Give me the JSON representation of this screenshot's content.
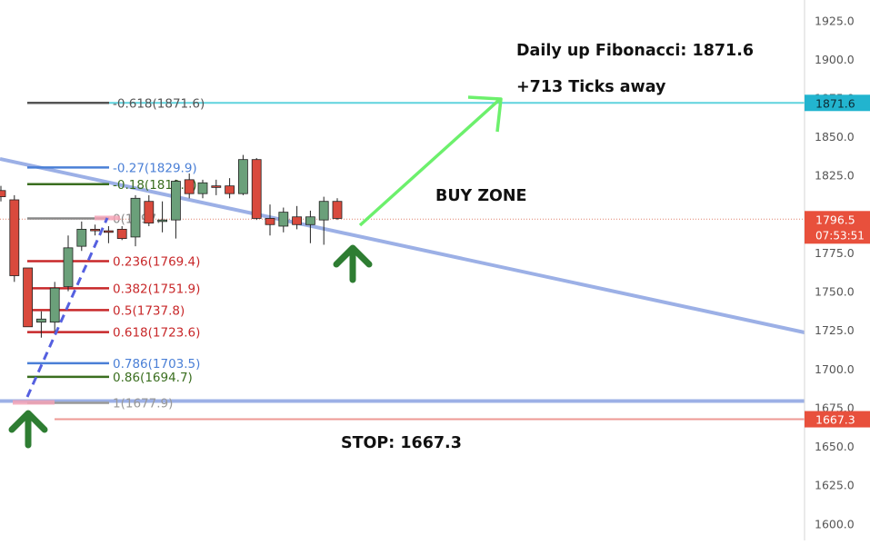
{
  "chart_data": {
    "type": "candlestick",
    "y_axis": {
      "position": "right",
      "ticks": [
        1600.0,
        1625.0,
        1650.0,
        1675.0,
        1700.0,
        1725.0,
        1750.0,
        1775.0,
        1825.0,
        1850.0,
        1875.0,
        1900.0,
        1925.0
      ],
      "tick_labels": [
        "1600.0",
        "1625.0",
        "1650.0",
        "1675.0",
        "1700.0",
        "1725.0",
        "1750.0",
        "1775.0",
        "1825.0",
        "1850.0",
        "1875.0",
        "1900.0",
        "1925.0"
      ],
      "range": [
        1590,
        1935
      ]
    },
    "candles": [
      {
        "o": 1815,
        "h": 1818,
        "l": 1808,
        "c": 1811
      },
      {
        "o": 1809,
        "h": 1812,
        "l": 1756,
        "c": 1760
      },
      {
        "o": 1765,
        "h": 1765,
        "l": 1727,
        "c": 1727
      },
      {
        "o": 1730,
        "h": 1737,
        "l": 1720,
        "c": 1732
      },
      {
        "o": 1730,
        "h": 1756,
        "l": 1724,
        "c": 1752
      },
      {
        "o": 1753,
        "h": 1786,
        "l": 1750,
        "c": 1778
      },
      {
        "o": 1779,
        "h": 1795,
        "l": 1776,
        "c": 1790
      },
      {
        "o": 1790,
        "h": 1793,
        "l": 1786,
        "c": 1789
      },
      {
        "o": 1789,
        "h": 1792,
        "l": 1781,
        "c": 1788
      },
      {
        "o": 1790,
        "h": 1792,
        "l": 1783,
        "c": 1784
      },
      {
        "o": 1785,
        "h": 1812,
        "l": 1779,
        "c": 1810
      },
      {
        "o": 1808,
        "h": 1812,
        "l": 1792,
        "c": 1794
      },
      {
        "o": 1795,
        "h": 1808,
        "l": 1788,
        "c": 1796
      },
      {
        "o": 1796,
        "h": 1822,
        "l": 1784,
        "c": 1821
      },
      {
        "o": 1822,
        "h": 1826,
        "l": 1810,
        "c": 1813
      },
      {
        "o": 1813,
        "h": 1822,
        "l": 1810,
        "c": 1820
      },
      {
        "o": 1818,
        "h": 1822,
        "l": 1812,
        "c": 1817
      },
      {
        "o": 1818,
        "h": 1823,
        "l": 1810,
        "c": 1813
      },
      {
        "o": 1813,
        "h": 1838,
        "l": 1812,
        "c": 1835
      },
      {
        "o": 1835,
        "h": 1836,
        "l": 1796,
        "c": 1797
      },
      {
        "o": 1797,
        "h": 1806,
        "l": 1786,
        "c": 1793
      },
      {
        "o": 1792,
        "h": 1804,
        "l": 1788,
        "c": 1801
      },
      {
        "o": 1798,
        "h": 1805,
        "l": 1790,
        "c": 1793
      },
      {
        "o": 1793,
        "h": 1802,
        "l": 1781,
        "c": 1798
      },
      {
        "o": 1796,
        "h": 1811,
        "l": 1780,
        "c": 1808
      },
      {
        "o": 1808,
        "h": 1810,
        "l": 1796,
        "c": 1797
      }
    ],
    "fib_levels": [
      {
        "label": "-0.618(1871.6)",
        "value": 1871.6,
        "color": "#555555"
      },
      {
        "label": "-0.27(1829.9)",
        "value": 1829.9,
        "color": "#4a7fd6"
      },
      {
        "label": "-0.18(1819.1)",
        "value": 1819.1,
        "color": "#3a6e1f"
      },
      {
        "label": "0(1797.",
        "value": 1797.0,
        "color": "#888888"
      },
      {
        "label": "0.236(1769.4)",
        "value": 1769.4,
        "color": "#c8282a"
      },
      {
        "label": "0.382(1751.9)",
        "value": 1751.9,
        "color": "#c8282a"
      },
      {
        "label": "0.5(1737.8)",
        "value": 1737.8,
        "color": "#c8282a"
      },
      {
        "label": "0.618(1723.6)",
        "value": 1723.6,
        "color": "#c8282a"
      },
      {
        "label": "0.786(1703.5)",
        "value": 1703.5,
        "color": "#4a7fd6"
      },
      {
        "label": "0.86(1694.7)",
        "value": 1694.7,
        "color": "#3a6e1f"
      },
      {
        "label": "1(1677.9)",
        "value": 1677.9,
        "color": "#999999"
      }
    ],
    "horizontal_lines": [
      {
        "name": "target",
        "value": 1871.6,
        "color": "#5fd3de"
      },
      {
        "name": "stop",
        "value": 1667.3,
        "color": "#ee9a94"
      },
      {
        "name": "current",
        "value": 1796.5,
        "color": "#e0826e"
      }
    ],
    "price_labels": [
      {
        "text": "1871.6",
        "value": 1871.6,
        "color": "#22b4cf"
      },
      {
        "text": "1796.5",
        "value": 1796.5,
        "color": "#e8503c"
      },
      {
        "text": "1667.3",
        "value": 1667.3,
        "color": "#e8503c"
      }
    ],
    "countdown": "07:53:51",
    "annotations": {
      "target_title": "Daily up Fibonacci: 1871.6",
      "target_ticks": "+713 Ticks away",
      "buy_zone": "BUY ZONE",
      "stop": "STOP: 1667.3"
    },
    "colors": {
      "up_candle": "#6ba07a",
      "down_candle": "#d94a3d",
      "trendline": "#9cb0e6",
      "arrow_green": "#2e7d32",
      "projection": "#6cf06c",
      "axis_text": "#555555"
    }
  }
}
